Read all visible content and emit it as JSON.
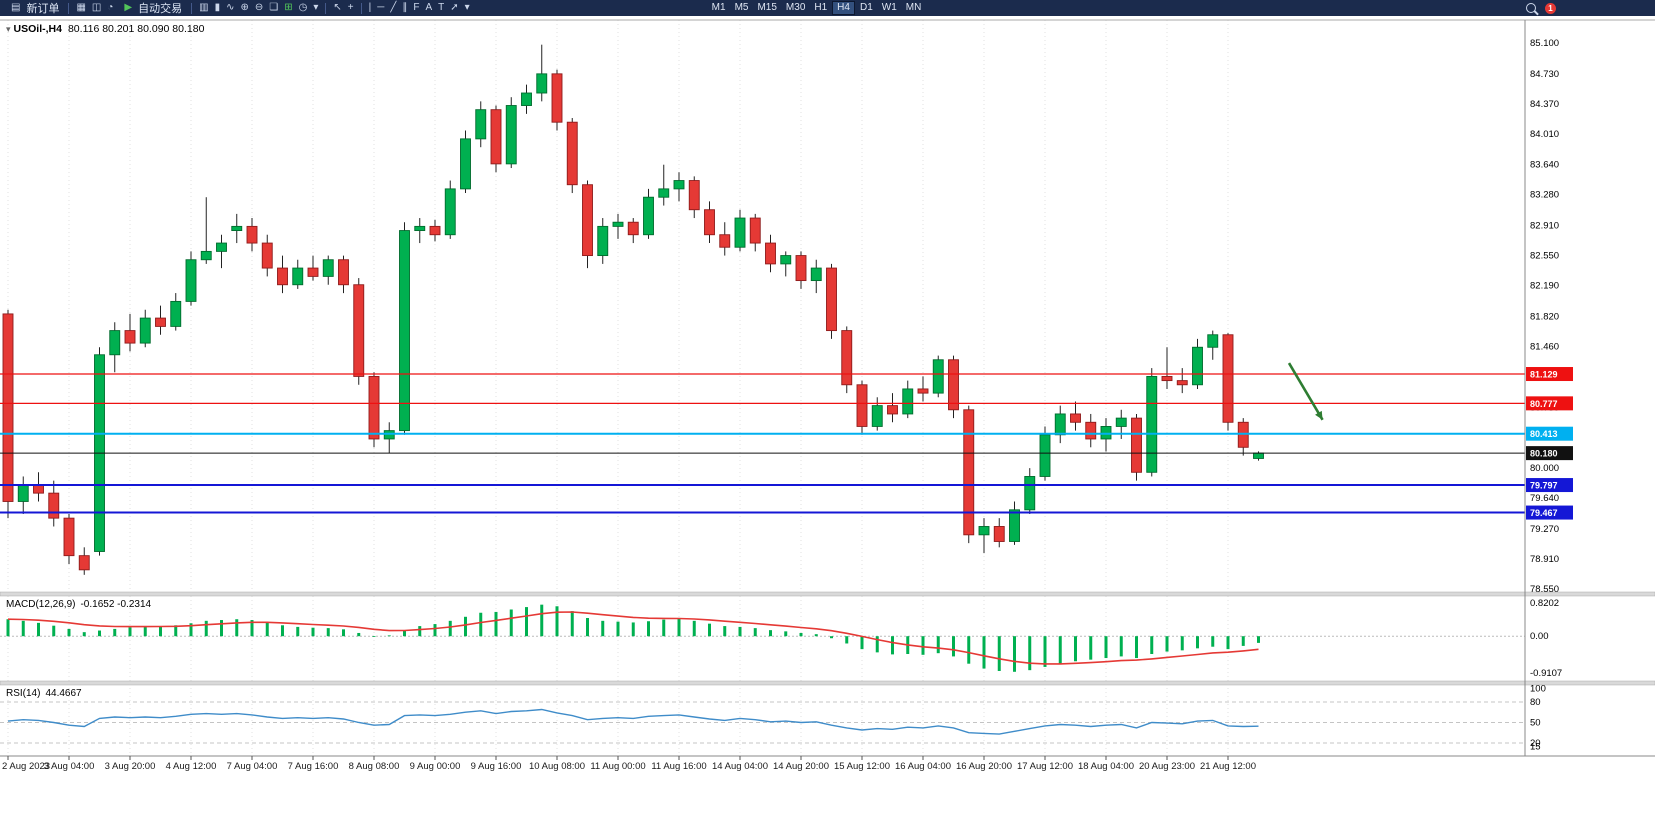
{
  "toolbar": {
    "new_order_label": "新订单",
    "autotrade_label": "自动交易",
    "timeframes": [
      "M1",
      "M5",
      "M15",
      "M30",
      "H1",
      "H4",
      "D1",
      "W1",
      "MN"
    ],
    "active_timeframe": "H4",
    "notification_count": "1",
    "icons": {
      "new_order": "▤",
      "chart_grid": "▦",
      "profiles": "◫",
      "alerts": "◔",
      "play": "▶",
      "bar_chart": "▥",
      "candles": "▮",
      "line_chart": "∿",
      "zoom_in": "⊕",
      "zoom_out": "⊖",
      "tile": "❏",
      "indicators": "⊞",
      "clock": "◷",
      "cursor": "↖",
      "crosshair": "+",
      "vline": "|",
      "hline": "─",
      "trend": "╱",
      "channel": "∥",
      "fibo": "F",
      "text": "A",
      "label": "T",
      "arrows": "➚",
      "caret": "▾"
    }
  },
  "chart": {
    "title": "USOil-,H4",
    "quote": "80.116 80.201 80.090 80.180"
  },
  "chart_data": {
    "type": "candlestick",
    "symbol": "USOil-",
    "timeframe": "H4",
    "price_axis": {
      "min": 78.55,
      "max": 85.1,
      "ticks": [
        85.1,
        84.73,
        84.37,
        84.01,
        83.64,
        83.28,
        82.91,
        82.55,
        82.19,
        81.82,
        81.46,
        81.09,
        80.73,
        80.37,
        80.0,
        79.64,
        79.27,
        78.91,
        78.55
      ]
    },
    "time_labels": [
      "2 Aug 2023",
      "3 Aug 04:00",
      "3 Aug 20:00",
      "4 Aug 12:00",
      "7 Aug 04:00",
      "7 Aug 16:00",
      "8 Aug 08:00",
      "9 Aug 00:00",
      "9 Aug 16:00",
      "10 Aug 08:00",
      "11 Aug 00:00",
      "11 Aug 16:00",
      "14 Aug 04:00",
      "14 Aug 20:00",
      "15 Aug 12:00",
      "16 Aug 04:00",
      "16 Aug 20:00",
      "17 Aug 12:00",
      "18 Aug 04:00",
      "20 Aug 23:00",
      "21 Aug 12:00"
    ],
    "bars_per_label": 4,
    "candles": [
      [
        81.85,
        81.9,
        79.4,
        79.6
      ],
      [
        79.6,
        79.9,
        79.45,
        79.8
      ],
      [
        79.8,
        79.95,
        79.6,
        79.7
      ],
      [
        79.7,
        79.85,
        79.3,
        79.4
      ],
      [
        79.4,
        79.45,
        78.85,
        78.95
      ],
      [
        78.95,
        79.05,
        78.72,
        78.78
      ],
      [
        79.0,
        81.45,
        78.95,
        81.36
      ],
      [
        81.36,
        81.75,
        81.15,
        81.65
      ],
      [
        81.65,
        81.85,
        81.4,
        81.5
      ],
      [
        81.5,
        81.9,
        81.45,
        81.8
      ],
      [
        81.8,
        81.95,
        81.6,
        81.7
      ],
      [
        81.7,
        82.1,
        81.65,
        82.0
      ],
      [
        82.0,
        82.6,
        81.95,
        82.5
      ],
      [
        82.5,
        83.25,
        82.45,
        82.6
      ],
      [
        82.6,
        82.8,
        82.4,
        82.7
      ],
      [
        82.85,
        83.05,
        82.7,
        82.9
      ],
      [
        82.9,
        83.0,
        82.6,
        82.7
      ],
      [
        82.7,
        82.8,
        82.3,
        82.4
      ],
      [
        82.4,
        82.55,
        82.1,
        82.2
      ],
      [
        82.2,
        82.5,
        82.15,
        82.4
      ],
      [
        82.4,
        82.55,
        82.25,
        82.3
      ],
      [
        82.3,
        82.55,
        82.2,
        82.5
      ],
      [
        82.5,
        82.55,
        82.1,
        82.2
      ],
      [
        82.2,
        82.28,
        81.0,
        81.1
      ],
      [
        81.1,
        81.15,
        80.25,
        80.35
      ],
      [
        80.35,
        80.55,
        80.18,
        80.45
      ],
      [
        80.45,
        82.95,
        80.4,
        82.85
      ],
      [
        82.85,
        83.0,
        82.7,
        82.9
      ],
      [
        82.9,
        82.98,
        82.72,
        82.8
      ],
      [
        82.8,
        83.45,
        82.75,
        83.35
      ],
      [
        83.35,
        84.05,
        83.3,
        83.95
      ],
      [
        83.95,
        84.4,
        83.85,
        84.3
      ],
      [
        84.3,
        84.35,
        83.55,
        83.65
      ],
      [
        83.65,
        84.45,
        83.6,
        84.35
      ],
      [
        84.35,
        84.6,
        84.25,
        84.5
      ],
      [
        84.5,
        85.08,
        84.4,
        84.73
      ],
      [
        84.73,
        84.78,
        84.05,
        84.15
      ],
      [
        84.15,
        84.2,
        83.3,
        83.4
      ],
      [
        83.4,
        83.45,
        82.4,
        82.55
      ],
      [
        82.55,
        83.0,
        82.45,
        82.9
      ],
      [
        82.9,
        83.05,
        82.75,
        82.95
      ],
      [
        82.95,
        83.0,
        82.7,
        82.8
      ],
      [
        82.8,
        83.35,
        82.75,
        83.25
      ],
      [
        83.25,
        83.64,
        83.15,
        83.35
      ],
      [
        83.35,
        83.55,
        83.2,
        83.45
      ],
      [
        83.45,
        83.5,
        83.0,
        83.1
      ],
      [
        83.1,
        83.2,
        82.7,
        82.8
      ],
      [
        82.8,
        82.95,
        82.55,
        82.65
      ],
      [
        82.65,
        83.1,
        82.6,
        83.0
      ],
      [
        83.0,
        83.05,
        82.6,
        82.7
      ],
      [
        82.7,
        82.8,
        82.35,
        82.45
      ],
      [
        82.45,
        82.6,
        82.3,
        82.55
      ],
      [
        82.55,
        82.6,
        82.15,
        82.25
      ],
      [
        82.25,
        82.5,
        82.1,
        82.4
      ],
      [
        82.4,
        82.45,
        81.55,
        81.65
      ],
      [
        81.65,
        81.7,
        80.9,
        81.0
      ],
      [
        81.0,
        81.05,
        80.4,
        80.5
      ],
      [
        80.5,
        80.85,
        80.45,
        80.75
      ],
      [
        80.75,
        80.9,
        80.55,
        80.65
      ],
      [
        80.65,
        81.05,
        80.6,
        80.95
      ],
      [
        80.95,
        81.1,
        80.8,
        80.9
      ],
      [
        80.9,
        81.35,
        80.85,
        81.3
      ],
      [
        81.3,
        81.35,
        80.6,
        80.7
      ],
      [
        80.7,
        80.75,
        79.1,
        79.2
      ],
      [
        79.2,
        79.4,
        78.98,
        79.3
      ],
      [
        79.3,
        79.4,
        79.05,
        79.12
      ],
      [
        79.12,
        79.6,
        79.08,
        79.5
      ],
      [
        79.5,
        80.0,
        79.45,
        79.9
      ],
      [
        79.9,
        80.5,
        79.85,
        80.4
      ],
      [
        80.4,
        80.75,
        80.3,
        80.65
      ],
      [
        80.65,
        80.8,
        80.45,
        80.55
      ],
      [
        80.55,
        80.65,
        80.25,
        80.35
      ],
      [
        80.35,
        80.6,
        80.2,
        80.5
      ],
      [
        80.5,
        80.7,
        80.35,
        80.6
      ],
      [
        80.6,
        80.65,
        79.85,
        79.95
      ],
      [
        79.95,
        81.2,
        79.9,
        81.1
      ],
      [
        81.1,
        81.45,
        80.95,
        81.05
      ],
      [
        81.05,
        81.2,
        80.9,
        81.0
      ],
      [
        81.0,
        81.55,
        80.95,
        81.45
      ],
      [
        81.45,
        81.65,
        81.3,
        81.6
      ],
      [
        81.6,
        81.62,
        80.45,
        80.55
      ],
      [
        80.55,
        80.6,
        80.15,
        80.25
      ],
      [
        80.116,
        80.201,
        80.09,
        80.18
      ]
    ],
    "hlines": [
      {
        "price": 81.129,
        "label": "81.129",
        "color": "#ee1111",
        "width": 1.2
      },
      {
        "price": 80.777,
        "label": "80.777",
        "color": "#ee1111",
        "width": 1.2
      },
      {
        "price": 80.413,
        "label": "80.413",
        "color": "#00b0f0",
        "width": 2
      },
      {
        "price": 80.18,
        "label": "80.180",
        "color": "#111111",
        "width": 1,
        "role": "current-price"
      },
      {
        "price": 79.797,
        "label": "79.797",
        "color": "#1417d6",
        "width": 2
      },
      {
        "price": 79.467,
        "label": "79.467",
        "color": "#1417d6",
        "width": 2
      }
    ],
    "arrow_annotation": {
      "from_bar": 84,
      "from_price": 81.26,
      "to_bar": 86.2,
      "to_price": 80.58,
      "color": "#2e7d32"
    },
    "macd": {
      "label": "MACD(12,26,9)",
      "values_label": "-0.1652 -0.2314",
      "max": 0.8202,
      "min": -0.9107,
      "axis_labels": [
        "0.8202",
        "0.00",
        "-0.9107"
      ],
      "histogram_color": "#00b050",
      "signal_color": "#e53935",
      "signal_period": 9,
      "histogram": [
        0.42,
        0.38,
        0.33,
        0.26,
        0.18,
        0.1,
        0.14,
        0.18,
        0.22,
        0.24,
        0.25,
        0.27,
        0.32,
        0.38,
        0.4,
        0.42,
        0.4,
        0.34,
        0.27,
        0.23,
        0.21,
        0.2,
        0.17,
        0.08,
        -0.02,
        0.02,
        0.15,
        0.25,
        0.3,
        0.38,
        0.48,
        0.58,
        0.6,
        0.66,
        0.72,
        0.78,
        0.74,
        0.62,
        0.45,
        0.38,
        0.36,
        0.34,
        0.37,
        0.41,
        0.43,
        0.38,
        0.31,
        0.25,
        0.23,
        0.2,
        0.15,
        0.12,
        0.08,
        0.05,
        -0.05,
        -0.18,
        -0.32,
        -0.4,
        -0.45,
        -0.44,
        -0.46,
        -0.42,
        -0.5,
        -0.68,
        -0.8,
        -0.86,
        -0.88,
        -0.84,
        -0.76,
        -0.68,
        -0.62,
        -0.58,
        -0.54,
        -0.5,
        -0.54,
        -0.44,
        -0.38,
        -0.35,
        -0.3,
        -0.26,
        -0.32,
        -0.24,
        -0.1652
      ]
    },
    "rsi": {
      "label": "RSI(14)",
      "value_label": "44.4667",
      "levels": [
        80,
        50,
        20
      ],
      "axis_labels": [
        100,
        80,
        50,
        20,
        15
      ],
      "line_color": "#3f8cc9",
      "values": [
        52,
        54,
        53,
        50,
        46,
        44,
        56,
        58,
        57,
        58,
        57,
        59,
        62,
        63,
        62,
        63,
        61,
        58,
        56,
        57,
        56,
        57,
        55,
        50,
        46,
        47,
        60,
        61,
        60,
        62,
        65,
        67,
        63,
        66,
        67,
        69,
        64,
        60,
        54,
        56,
        57,
        56,
        59,
        60,
        61,
        58,
        55,
        53,
        56,
        54,
        51,
        52,
        50,
        51,
        46,
        42,
        39,
        41,
        40,
        43,
        42,
        45,
        42,
        35,
        34,
        33,
        37,
        41,
        45,
        47,
        46,
        44,
        46,
        47,
        42,
        50,
        49,
        48,
        52,
        53,
        45,
        44,
        44.4667
      ]
    },
    "colors": {
      "up": "#00b050",
      "up_stroke": "#006b2d",
      "down": "#e53935",
      "down_stroke": "#8e1b1b",
      "wick": "#222222",
      "grid": "#e0e0e0",
      "background": "#ffffff",
      "toolbar_bg": "#1b2b4d"
    }
  }
}
